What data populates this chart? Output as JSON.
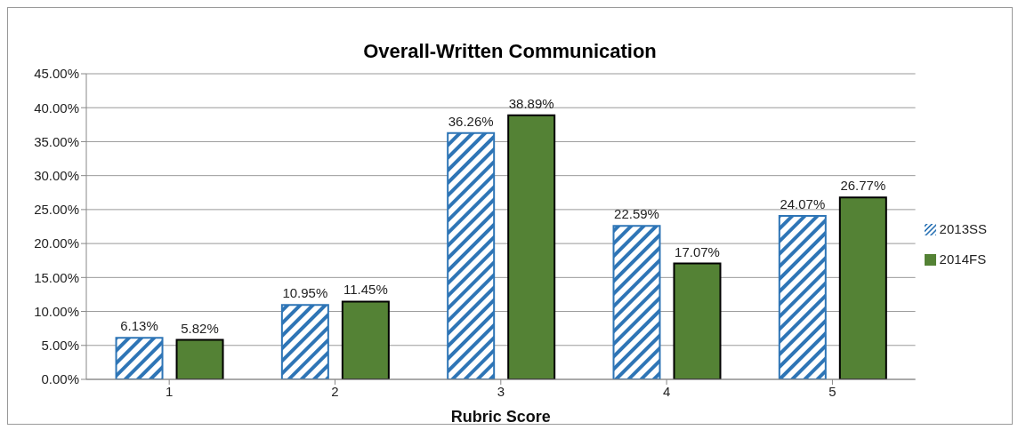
{
  "chart_data": {
    "type": "bar",
    "title": "Overall-Written Communication",
    "xlabel": "Rubric Score",
    "categories": [
      "1",
      "2",
      "3",
      "4",
      "5"
    ],
    "series": [
      {
        "name": "2013SS",
        "color": "#2e75b6",
        "values": [
          6.13,
          10.95,
          36.26,
          22.59,
          24.07
        ],
        "value_labels": [
          "6.13%",
          "10.95%",
          "36.26%",
          "22.59%",
          "24.07%"
        ]
      },
      {
        "name": "2014FS",
        "color": "#548235",
        "values": [
          5.82,
          11.45,
          38.89,
          17.07,
          26.77
        ],
        "value_labels": [
          "5.82%",
          "11.45%",
          "38.89%",
          "17.07%",
          "26.77%"
        ]
      }
    ],
    "ylim": [
      0,
      45
    ],
    "yticks": [
      {
        "value": 0,
        "label": "0.00%"
      },
      {
        "value": 5,
        "label": "5.00%"
      },
      {
        "value": 10,
        "label": "10.00%"
      },
      {
        "value": 15,
        "label": "15.00%"
      },
      {
        "value": 20,
        "label": "20.00%"
      },
      {
        "value": 25,
        "label": "25.00%"
      },
      {
        "value": 30,
        "label": "30.00%"
      },
      {
        "value": 35,
        "label": "35.00%"
      },
      {
        "value": 40,
        "label": "40.00%"
      },
      {
        "value": 45,
        "label": "45.00%"
      }
    ],
    "grid": "y",
    "legend": "right"
  }
}
